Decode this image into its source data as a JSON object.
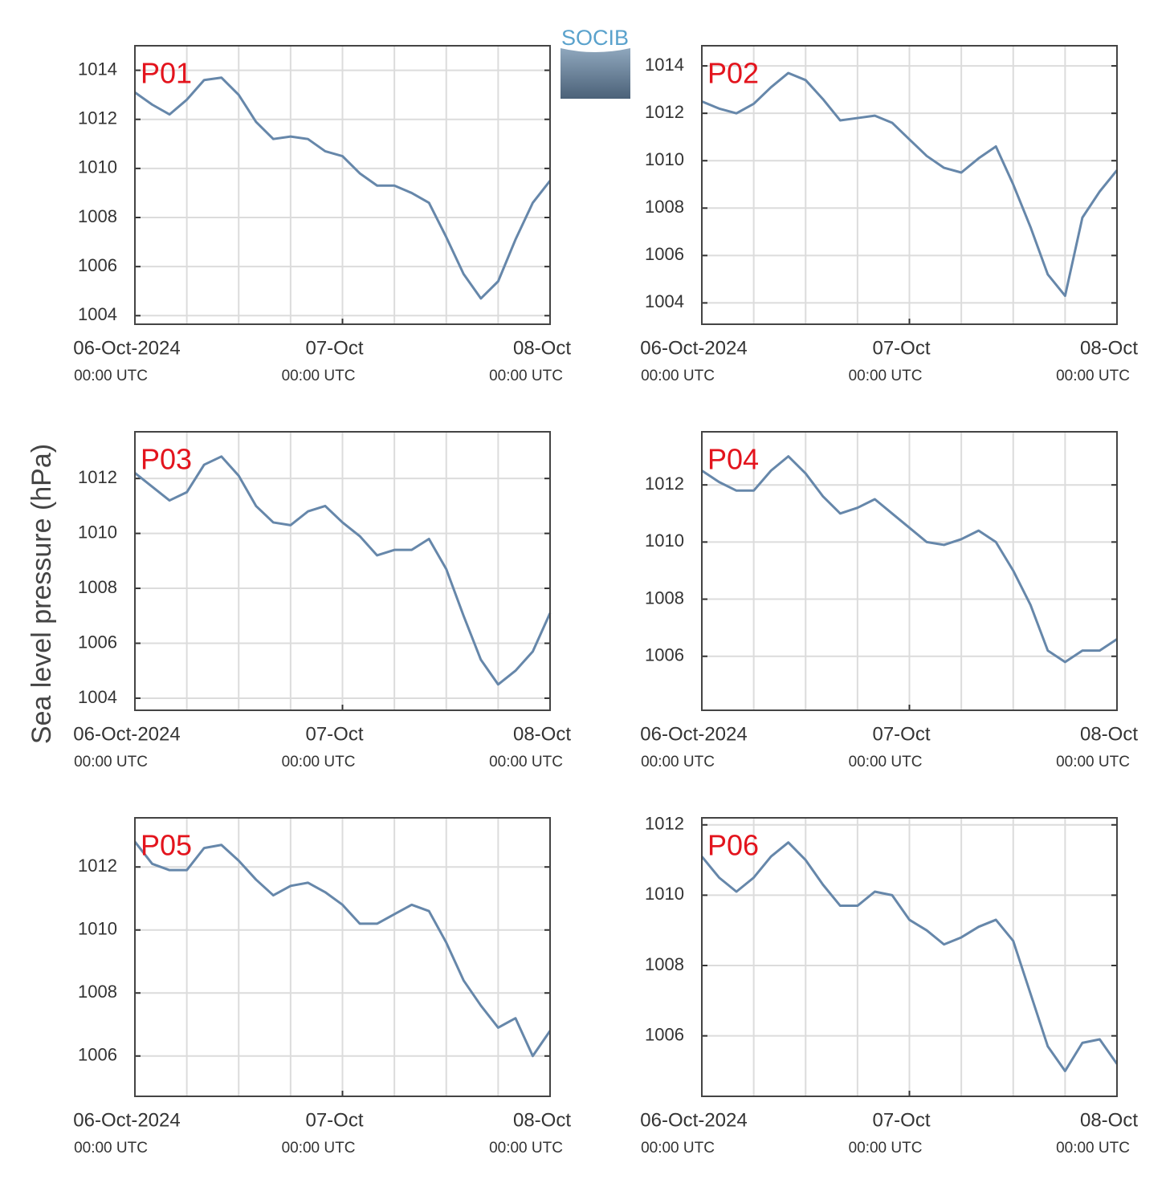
{
  "y_label": "Sea level pressure (hPa)",
  "logo": "SOCIB",
  "chart_data": [
    {
      "type": "line",
      "title": "P01",
      "x": [
        0,
        2,
        4,
        6,
        8,
        10,
        12,
        14,
        16,
        18,
        20,
        22,
        24,
        26,
        28,
        30,
        32,
        34,
        36,
        38,
        40,
        42,
        44,
        46,
        48
      ],
      "series": [
        {
          "color": "#6687aa",
          "values": [
            1013.1,
            1012.6,
            1012.2,
            1012.8,
            1013.6,
            1013.7,
            1013.0,
            1011.9,
            1011.2,
            1011.3,
            1011.2,
            1010.7,
            1010.5,
            1009.8,
            1009.3,
            1009.3,
            1009.0,
            1008.6,
            1007.2,
            1005.7,
            1004.7,
            1005.4,
            1007.1,
            1008.6,
            1009.5
          ]
        }
      ],
      "xlim": [
        0,
        48
      ],
      "xticks": [
        {
          "value": 0,
          "label": "06-Oct-2024"
        },
        {
          "value": 24,
          "label": "07-Oct"
        },
        {
          "value": 48,
          "label": "08-Oct"
        }
      ],
      "xtick_sublabels": [
        "00:00 UTC",
        "00:00 UTC",
        "00:00 UTC"
      ],
      "xminor_ticks": [
        0,
        6,
        12,
        18,
        24,
        30,
        36,
        42,
        48
      ],
      "ylim": [
        1003.65,
        1015
      ],
      "yticks": [
        1004,
        1006,
        1008,
        1010,
        1012,
        1014
      ],
      "grid": true
    },
    {
      "type": "line",
      "title": "P02",
      "x": [
        0,
        2,
        4,
        6,
        8,
        10,
        12,
        14,
        16,
        18,
        20,
        22,
        24,
        26,
        28,
        30,
        32,
        34,
        36,
        38,
        40,
        42,
        44,
        46,
        48
      ],
      "series": [
        {
          "color": "#6687aa",
          "values": [
            1012.5,
            1012.2,
            1012.0,
            1012.4,
            1013.1,
            1013.7,
            1013.4,
            1012.6,
            1011.7,
            1011.8,
            1011.9,
            1011.6,
            1010.9,
            1010.2,
            1009.7,
            1009.5,
            1010.1,
            1010.6,
            1009.0,
            1007.2,
            1005.2,
            1004.3,
            1007.6,
            1008.7,
            1009.6
          ]
        }
      ],
      "xlim": [
        0,
        48
      ],
      "xticks": [
        {
          "value": 0,
          "label": "06-Oct-2024"
        },
        {
          "value": 24,
          "label": "07-Oct"
        },
        {
          "value": 48,
          "label": "08-Oct"
        }
      ],
      "xtick_sublabels": [
        "00:00 UTC",
        "00:00 UTC",
        "00:00 UTC"
      ],
      "xminor_ticks": [
        0,
        6,
        12,
        18,
        24,
        30,
        36,
        42,
        48
      ],
      "ylim": [
        1003.1,
        1014.85
      ],
      "yticks": [
        1004,
        1006,
        1008,
        1010,
        1012,
        1014
      ],
      "grid": true
    },
    {
      "type": "line",
      "title": "P03",
      "x": [
        0,
        2,
        4,
        6,
        8,
        10,
        12,
        14,
        16,
        18,
        20,
        22,
        24,
        26,
        28,
        30,
        32,
        34,
        36,
        38,
        40,
        42,
        44,
        46,
        48
      ],
      "series": [
        {
          "color": "#6687aa",
          "values": [
            1012.2,
            1011.7,
            1011.2,
            1011.5,
            1012.5,
            1012.8,
            1012.1,
            1011.0,
            1010.4,
            1010.3,
            1010.8,
            1011.0,
            1010.4,
            1009.9,
            1009.2,
            1009.4,
            1009.4,
            1009.8,
            1008.7,
            1007.0,
            1005.4,
            1004.5,
            1005.0,
            1005.7,
            1007.1
          ]
        }
      ],
      "xlim": [
        0,
        48
      ],
      "xticks": [
        {
          "value": 0,
          "label": "06-Oct-2024"
        },
        {
          "value": 24,
          "label": "07-Oct"
        },
        {
          "value": 48,
          "label": "08-Oct"
        }
      ],
      "xtick_sublabels": [
        "00:00 UTC",
        "00:00 UTC",
        "00:00 UTC"
      ],
      "xminor_ticks": [
        0,
        6,
        12,
        18,
        24,
        30,
        36,
        42,
        48
      ],
      "ylim": [
        1003.56,
        1013.7
      ],
      "yticks": [
        1004,
        1006,
        1008,
        1010,
        1012
      ],
      "grid": true
    },
    {
      "type": "line",
      "title": "P04",
      "x": [
        0,
        2,
        4,
        6,
        8,
        10,
        12,
        14,
        16,
        18,
        20,
        22,
        24,
        26,
        28,
        30,
        32,
        34,
        36,
        38,
        40,
        42,
        44,
        46,
        48
      ],
      "series": [
        {
          "color": "#6687aa",
          "values": [
            1012.5,
            1012.1,
            1011.8,
            1011.8,
            1012.5,
            1013.0,
            1012.4,
            1011.6,
            1011.0,
            1011.2,
            1011.5,
            1011.0,
            1010.5,
            1010.0,
            1009.9,
            1010.1,
            1010.4,
            1010.0,
            1009.0,
            1007.8,
            1006.2,
            1005.8,
            1006.2,
            1006.2,
            1006.6
          ]
        }
      ],
      "xlim": [
        0,
        48
      ],
      "xticks": [
        {
          "value": 0,
          "label": "06-Oct-2024"
        },
        {
          "value": 24,
          "label": "07-Oct"
        },
        {
          "value": 48,
          "label": "08-Oct"
        }
      ],
      "xtick_sublabels": [
        "00:00 UTC",
        "00:00 UTC",
        "00:00 UTC"
      ],
      "xminor_ticks": [
        0,
        6,
        12,
        18,
        24,
        30,
        36,
        42,
        48
      ],
      "ylim": [
        1004.11,
        1013.86
      ],
      "yticks": [
        1006,
        1008,
        1010,
        1012
      ],
      "grid": true
    },
    {
      "type": "line",
      "title": "P05",
      "x": [
        0,
        2,
        4,
        6,
        8,
        10,
        12,
        14,
        16,
        18,
        20,
        22,
        24,
        26,
        28,
        30,
        32,
        34,
        36,
        38,
        40,
        42,
        44,
        46,
        48
      ],
      "series": [
        {
          "color": "#6687aa",
          "values": [
            1012.8,
            1012.1,
            1011.9,
            1011.9,
            1012.6,
            1012.7,
            1012.2,
            1011.6,
            1011.1,
            1011.4,
            1011.5,
            1011.2,
            1010.8,
            1010.2,
            1010.2,
            1010.5,
            1010.8,
            1010.6,
            1009.6,
            1008.4,
            1007.6,
            1006.9,
            1007.2,
            1006.0,
            1006.8
          ]
        }
      ],
      "xlim": [
        0,
        48
      ],
      "xticks": [
        {
          "value": 0,
          "label": "06-Oct-2024"
        },
        {
          "value": 24,
          "label": "07-Oct"
        },
        {
          "value": 48,
          "label": "08-Oct"
        }
      ],
      "xtick_sublabels": [
        "00:00 UTC",
        "00:00 UTC",
        "00:00 UTC"
      ],
      "xminor_ticks": [
        0,
        6,
        12,
        18,
        24,
        30,
        36,
        42,
        48
      ],
      "ylim": [
        1004.72,
        1013.56
      ],
      "yticks": [
        1006,
        1008,
        1010,
        1012
      ],
      "grid": true
    },
    {
      "type": "line",
      "title": "P06",
      "x": [
        0,
        2,
        4,
        6,
        8,
        10,
        12,
        14,
        16,
        18,
        20,
        22,
        24,
        26,
        28,
        30,
        32,
        34,
        36,
        38,
        40,
        42,
        44,
        46,
        48
      ],
      "series": [
        {
          "color": "#6687aa",
          "values": [
            1011.1,
            1010.5,
            1010.1,
            1010.5,
            1011.1,
            1011.5,
            1011.0,
            1010.3,
            1009.7,
            1009.7,
            1010.1,
            1010.0,
            1009.3,
            1009.0,
            1008.6,
            1008.8,
            1009.1,
            1009.3,
            1008.7,
            1007.2,
            1005.7,
            1005.0,
            1005.8,
            1005.9,
            1005.2
          ]
        }
      ],
      "xlim": [
        0,
        48
      ],
      "xticks": [
        {
          "value": 0,
          "label": "06-Oct-2024"
        },
        {
          "value": 24,
          "label": "07-Oct"
        },
        {
          "value": 48,
          "label": "08-Oct"
        }
      ],
      "xtick_sublabels": [
        "00:00 UTC",
        "00:00 UTC",
        "00:00 UTC"
      ],
      "xminor_ticks": [
        0,
        6,
        12,
        18,
        24,
        30,
        36,
        42,
        48
      ],
      "ylim": [
        1004.28,
        1012.2
      ],
      "yticks": [
        1006,
        1008,
        1010,
        1012
      ],
      "grid": true
    }
  ]
}
